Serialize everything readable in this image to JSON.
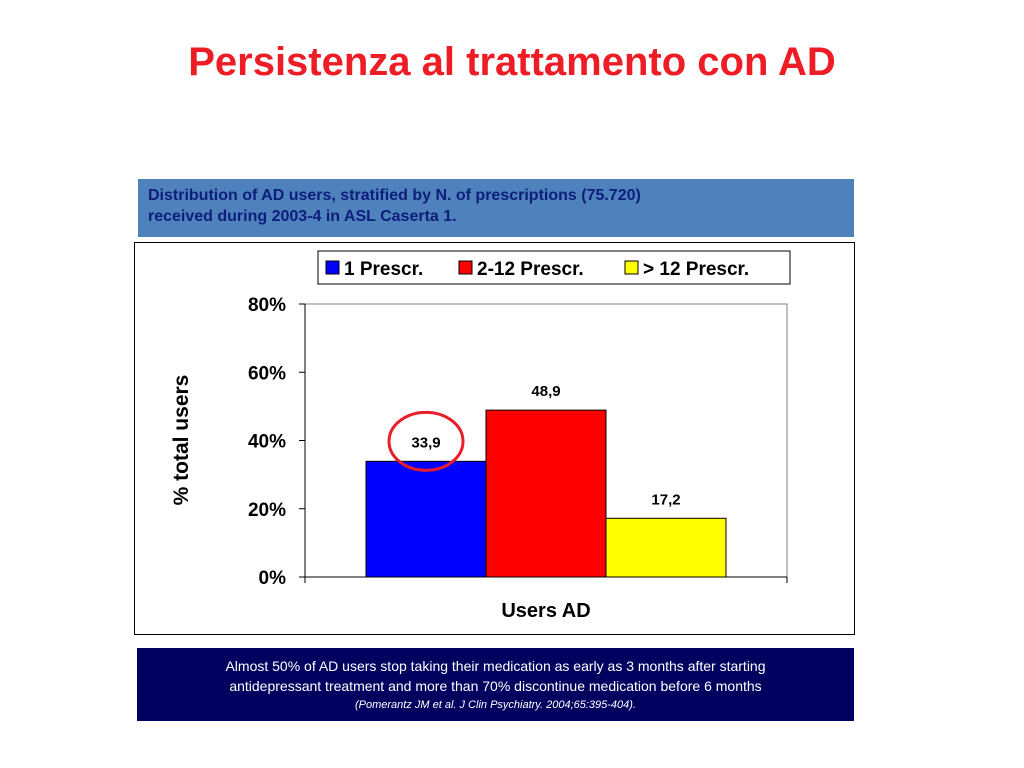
{
  "slide": {
    "title": "Persistenza al trattamento con AD",
    "subtitle_line1": "Distribution of AD users, stratified by N. of prescriptions (75.720)",
    "subtitle_line2": "received during 2003-4 in ASL Caserta 1.",
    "note_line1": "Almost 50% of AD users stop taking their medication as early as 3 months after starting",
    "note_line2": "antidepressant treatment and more than 70% discontinue medication before 6 months",
    "note_ref": "(Pomerantz JM et al. J Clin Psychiatry. 2004;65:395-404)."
  },
  "chart_data": {
    "type": "bar",
    "categories": [
      "Users AD"
    ],
    "series": [
      {
        "name": "1 Prescr.",
        "values": [
          33.9
        ],
        "label": "33,9",
        "color": "#0000ff"
      },
      {
        "name": "2-12 Prescr.",
        "values": [
          48.9
        ],
        "label": "48,9",
        "color": "#ff0000"
      },
      {
        "name": "> 12 Prescr.",
        "values": [
          17.2
        ],
        "label": "17,2",
        "color": "#ffff00"
      }
    ],
    "xlabel": "Users AD",
    "ylabel": "% total users",
    "ylim": [
      0,
      80
    ],
    "yticks": [
      "0%",
      "20%",
      "40%",
      "60%",
      "80%"
    ],
    "legend_position": "top",
    "grid": false,
    "annotation": {
      "type": "circle",
      "target_series": "1 Prescr.",
      "color": "#e81e2a"
    }
  }
}
